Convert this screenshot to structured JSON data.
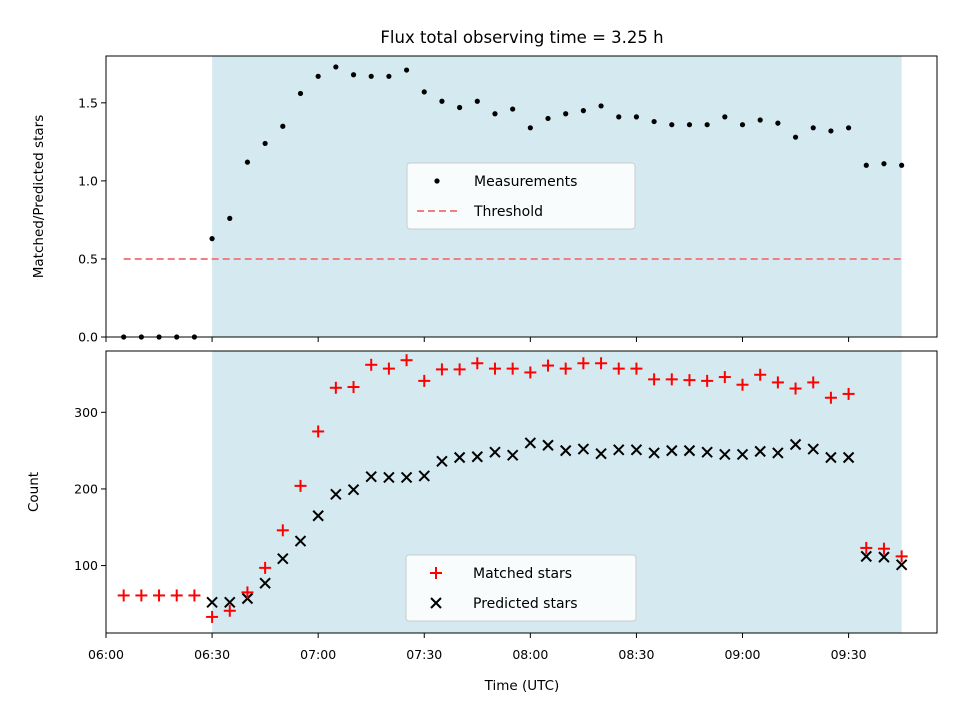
{
  "chart_data": [
    {
      "type": "scatter",
      "title": "Flux total observing time = 3.25 h",
      "ylabel": "Matched/Predicted stars",
      "xlabel": "",
      "xlim": [
        "06:00",
        "09:55"
      ],
      "ylim": [
        0,
        1.8
      ],
      "yticks": [
        0.0,
        0.5,
        1.0,
        1.5
      ],
      "ytick_labels": [
        "0.0",
        "0.5",
        "1.0",
        "1.5"
      ],
      "shaded_region": {
        "start": "06:30",
        "end": "09:45",
        "color": "#d4eaf0"
      },
      "legend_position": "center",
      "series": [
        {
          "name": "Measurements",
          "marker": "dot",
          "color": "#000000",
          "x": [
            "06:05",
            "06:10",
            "06:15",
            "06:20",
            "06:25",
            "06:30",
            "06:35",
            "06:40",
            "06:45",
            "06:50",
            "06:55",
            "07:00",
            "07:05",
            "07:10",
            "07:15",
            "07:20",
            "07:25",
            "07:30",
            "07:35",
            "07:40",
            "07:45",
            "07:50",
            "07:55",
            "08:00",
            "08:05",
            "08:10",
            "08:15",
            "08:20",
            "08:25",
            "08:30",
            "08:35",
            "08:40",
            "08:45",
            "08:50",
            "08:55",
            "09:00",
            "09:05",
            "09:10",
            "09:15",
            "09:20",
            "09:25",
            "09:30",
            "09:35",
            "09:40",
            "09:45"
          ],
          "y": [
            0,
            0,
            0,
            0,
            0,
            0.63,
            0.76,
            1.12,
            1.24,
            1.35,
            1.56,
            1.67,
            1.73,
            1.68,
            1.67,
            1.67,
            1.71,
            1.57,
            1.51,
            1.47,
            1.51,
            1.43,
            1.46,
            1.34,
            1.4,
            1.43,
            1.45,
            1.48,
            1.41,
            1.41,
            1.38,
            1.36,
            1.36,
            1.36,
            1.41,
            1.36,
            1.39,
            1.37,
            1.28,
            1.34,
            1.32,
            1.34,
            1.1,
            1.11,
            1.1
          ]
        },
        {
          "name": "Threshold",
          "style": "dashed-line",
          "color": "#f08080",
          "x": [
            "06:05",
            "09:45"
          ],
          "y": [
            0.5,
            0.5
          ]
        }
      ]
    },
    {
      "type": "scatter",
      "title": "",
      "ylabel": "Count",
      "xlabel": "Time (UTC)",
      "xlim": [
        "06:00",
        "09:55"
      ],
      "ylim": [
        12,
        380
      ],
      "yticks": [
        100,
        200,
        300
      ],
      "ytick_labels": [
        "100",
        "200",
        "300"
      ],
      "xticks": [
        "06:00",
        "06:30",
        "07:00",
        "07:30",
        "08:00",
        "08:30",
        "09:00",
        "09:30"
      ],
      "xtick_labels": [
        "06:00",
        "06:30",
        "07:00",
        "07:30",
        "08:00",
        "08:30",
        "09:00",
        "09:30"
      ],
      "shaded_region": {
        "start": "06:30",
        "end": "09:45",
        "color": "#d4eaf0"
      },
      "legend_position": "lower center",
      "series": [
        {
          "name": "Matched stars",
          "marker": "plus",
          "color": "#ff0000",
          "x": [
            "06:05",
            "06:10",
            "06:15",
            "06:20",
            "06:25",
            "06:30",
            "06:35",
            "06:40",
            "06:45",
            "06:50",
            "06:55",
            "07:00",
            "07:05",
            "07:10",
            "07:15",
            "07:20",
            "07:25",
            "07:30",
            "07:35",
            "07:40",
            "07:45",
            "07:50",
            "07:55",
            "08:00",
            "08:05",
            "08:10",
            "08:15",
            "08:20",
            "08:25",
            "08:30",
            "08:35",
            "08:40",
            "08:45",
            "08:50",
            "08:55",
            "09:00",
            "09:05",
            "09:10",
            "09:15",
            "09:20",
            "09:25",
            "09:30",
            "09:35",
            "09:40",
            "09:45"
          ],
          "y": [
            61,
            61,
            61,
            61,
            61,
            33,
            41,
            65,
            97,
            146,
            204,
            275,
            332,
            333,
            362,
            357,
            368,
            341,
            356,
            356,
            364,
            357,
            357,
            352,
            361,
            357,
            364,
            364,
            357,
            357,
            343,
            343,
            342,
            341,
            346,
            336,
            349,
            339,
            331,
            339,
            319,
            324,
            123,
            122,
            112
          ]
        },
        {
          "name": "Predicted stars",
          "marker": "x",
          "color": "#000000",
          "x": [
            "06:30",
            "06:35",
            "06:40",
            "06:45",
            "06:50",
            "06:55",
            "07:00",
            "07:05",
            "07:10",
            "07:15",
            "07:20",
            "07:25",
            "07:30",
            "07:35",
            "07:40",
            "07:45",
            "07:50",
            "07:55",
            "08:00",
            "08:05",
            "08:10",
            "08:15",
            "08:20",
            "08:25",
            "08:30",
            "08:35",
            "08:40",
            "08:45",
            "08:50",
            "08:55",
            "09:00",
            "09:05",
            "09:10",
            "09:15",
            "09:20",
            "09:25",
            "09:30",
            "09:35",
            "09:40",
            "09:45"
          ],
          "y": [
            52,
            52,
            57,
            77,
            109,
            132,
            165,
            193,
            199,
            216,
            215,
            215,
            217,
            236,
            241,
            242,
            248,
            244,
            260,
            257,
            250,
            252,
            246,
            251,
            251,
            247,
            250,
            250,
            248,
            245,
            245,
            249,
            247,
            258,
            252,
            241,
            241,
            112,
            111,
            101
          ]
        }
      ]
    }
  ]
}
